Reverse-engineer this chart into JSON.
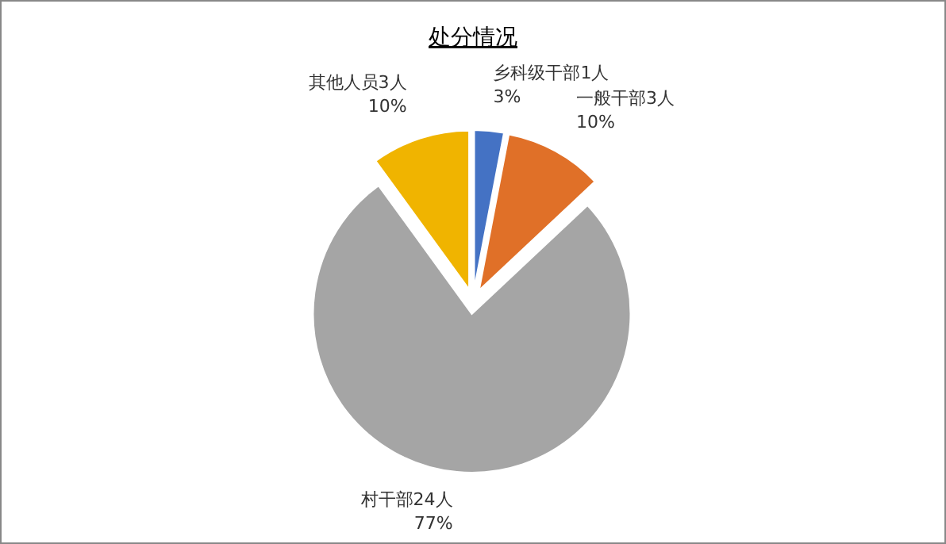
{
  "chart_data": {
    "type": "pie",
    "title": "处分情况",
    "categories": [
      "乡科级干部1人",
      "一般干部3人",
      "村干部24人",
      "其他人员3人"
    ],
    "values": [
      3,
      10,
      77,
      10
    ],
    "value_labels": [
      "3%",
      "10%",
      "77%",
      "10%"
    ],
    "colors": [
      "#4472c4",
      "#e07028",
      "#a5a5a5",
      "#f0b400"
    ]
  }
}
